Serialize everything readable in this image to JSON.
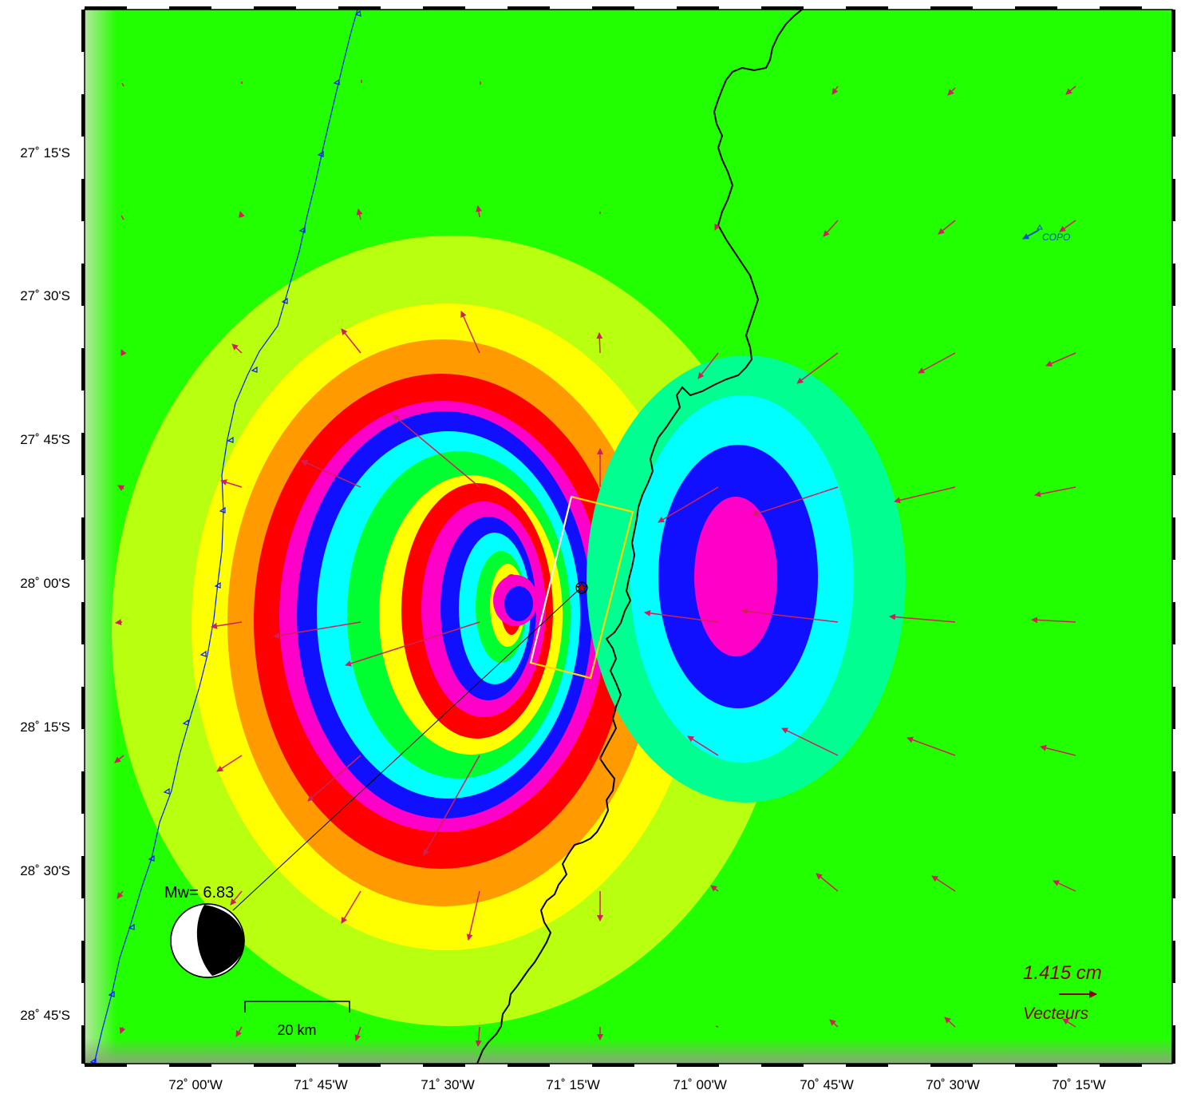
{
  "map": {
    "lat_labels": [
      "27˚ 15'S",
      "27˚ 30'S",
      "27˚ 45'S",
      "28˚ 00'S",
      "28˚ 15'S",
      "28˚ 30'S",
      "28˚ 45'S"
    ],
    "lon_labels": [
      "72˚ 00'W",
      "71˚ 45'W",
      "71˚ 30'W",
      "71˚ 15'W",
      "71˚ 00'W",
      "70˚ 45'W",
      "70˚ 30'W",
      "70˚ 15'W"
    ],
    "magnitude_label": "Mw= 6.83",
    "scale_bar_label": "20 km",
    "vector_scale_value": "1.415  cm",
    "vector_legend_label": "Vecteurs",
    "station_label": "COPO",
    "colors": {
      "background": "#22ff00",
      "vector": "#d0205a",
      "vector_scale": "#8b0018",
      "trench": "#0018ff",
      "coastline": "#000000",
      "fault_outline": "#ffd700",
      "station": "#0050c0"
    },
    "legend_placement": "bottom-right",
    "beachball_placement": "bottom-left"
  }
}
